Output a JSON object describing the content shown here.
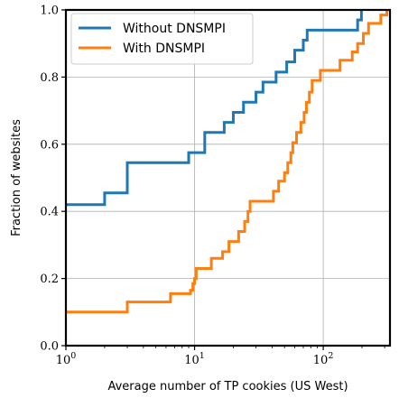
{
  "chart_data": {
    "type": "line",
    "title": "",
    "xlabel": "Average number of TP cookies (US West)",
    "ylabel": "Fraction of websites",
    "x_scale": "log",
    "xlim": [
      1,
      330
    ],
    "ylim": [
      0.0,
      1.0
    ],
    "grid": true,
    "legend": "top-left",
    "x_ticks": [
      {
        "value": 1,
        "base": "10",
        "exp": "0"
      },
      {
        "value": 10,
        "base": "10",
        "exp": "1"
      },
      {
        "value": 100,
        "base": "10",
        "exp": "2"
      }
    ],
    "y_ticks": [
      {
        "value": 0.0,
        "label": "0.0"
      },
      {
        "value": 0.2,
        "label": "0.2"
      },
      {
        "value": 0.4,
        "label": "0.4"
      },
      {
        "value": 0.6,
        "label": "0.6"
      },
      {
        "value": 0.8,
        "label": "0.8"
      },
      {
        "value": 1.0,
        "label": "1.0"
      }
    ],
    "series": [
      {
        "name": "Without DNSMPI",
        "color": "#1f77b4",
        "points": [
          [
            1,
            0.42
          ],
          [
            2,
            0.42
          ],
          [
            2,
            0.455
          ],
          [
            3,
            0.455
          ],
          [
            3,
            0.545
          ],
          [
            9,
            0.545
          ],
          [
            9,
            0.575
          ],
          [
            12,
            0.575
          ],
          [
            12,
            0.635
          ],
          [
            17,
            0.635
          ],
          [
            17,
            0.665
          ],
          [
            20,
            0.665
          ],
          [
            20,
            0.695
          ],
          [
            24,
            0.695
          ],
          [
            24,
            0.725
          ],
          [
            30,
            0.725
          ],
          [
            30,
            0.755
          ],
          [
            34,
            0.755
          ],
          [
            34,
            0.785
          ],
          [
            43,
            0.785
          ],
          [
            43,
            0.815
          ],
          [
            52,
            0.815
          ],
          [
            52,
            0.845
          ],
          [
            60,
            0.845
          ],
          [
            60,
            0.88
          ],
          [
            70,
            0.88
          ],
          [
            70,
            0.91
          ],
          [
            75,
            0.91
          ],
          [
            75,
            0.94
          ],
          [
            185,
            0.94
          ],
          [
            185,
            0.97
          ],
          [
            198,
            0.97
          ],
          [
            198,
            1.0
          ]
        ]
      },
      {
        "name": "With DNSMPI",
        "color": "#ff7f0e",
        "points": [
          [
            1,
            0.1
          ],
          [
            3,
            0.1
          ],
          [
            3,
            0.13
          ],
          [
            6.5,
            0.13
          ],
          [
            6.5,
            0.155
          ],
          [
            9.3,
            0.155
          ],
          [
            9.3,
            0.165
          ],
          [
            9.7,
            0.165
          ],
          [
            9.7,
            0.185
          ],
          [
            10,
            0.185
          ],
          [
            10,
            0.2
          ],
          [
            10.3,
            0.2
          ],
          [
            10.3,
            0.23
          ],
          [
            13.5,
            0.23
          ],
          [
            13.5,
            0.26
          ],
          [
            16.5,
            0.26
          ],
          [
            16.5,
            0.28
          ],
          [
            18.5,
            0.28
          ],
          [
            18.5,
            0.31
          ],
          [
            22,
            0.31
          ],
          [
            22,
            0.34
          ],
          [
            24.5,
            0.34
          ],
          [
            24.5,
            0.37
          ],
          [
            26,
            0.37
          ],
          [
            26,
            0.4
          ],
          [
            27,
            0.4
          ],
          [
            27,
            0.43
          ],
          [
            41,
            0.43
          ],
          [
            41,
            0.46
          ],
          [
            45,
            0.46
          ],
          [
            45,
            0.49
          ],
          [
            50,
            0.49
          ],
          [
            50,
            0.515
          ],
          [
            53,
            0.515
          ],
          [
            53,
            0.545
          ],
          [
            56,
            0.545
          ],
          [
            56,
            0.575
          ],
          [
            58,
            0.575
          ],
          [
            58,
            0.605
          ],
          [
            62,
            0.605
          ],
          [
            62,
            0.635
          ],
          [
            67,
            0.635
          ],
          [
            67,
            0.665
          ],
          [
            71,
            0.665
          ],
          [
            71,
            0.695
          ],
          [
            74,
            0.695
          ],
          [
            74,
            0.725
          ],
          [
            78,
            0.725
          ],
          [
            78,
            0.755
          ],
          [
            82,
            0.755
          ],
          [
            82,
            0.79
          ],
          [
            95,
            0.79
          ],
          [
            95,
            0.82
          ],
          [
            135,
            0.82
          ],
          [
            135,
            0.85
          ],
          [
            168,
            0.85
          ],
          [
            168,
            0.875
          ],
          [
            185,
            0.875
          ],
          [
            185,
            0.9
          ],
          [
            205,
            0.9
          ],
          [
            205,
            0.93
          ],
          [
            225,
            0.93
          ],
          [
            225,
            0.96
          ],
          [
            280,
            0.96
          ],
          [
            280,
            0.985
          ],
          [
            312,
            0.985
          ],
          [
            312,
            1.0
          ]
        ]
      }
    ]
  }
}
